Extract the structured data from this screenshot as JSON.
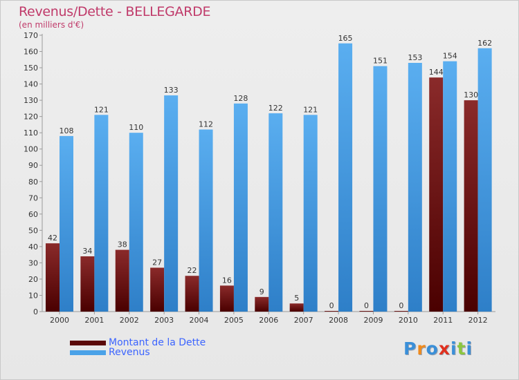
{
  "title": "Revenus/Dette - BELLEGARDE",
  "subtitle": "(en milliers d'€)",
  "legend": {
    "debt_label": "Montant de la Dette",
    "revenue_label": "Revenus"
  },
  "logo": {
    "letters": [
      "P",
      "r",
      "o",
      "x",
      "i",
      "t",
      "i"
    ],
    "colors": [
      "#3a8fd8",
      "#f08a1c",
      "#3a8fd8",
      "#e0301e",
      "#3a8fd8",
      "#8cc63f",
      "#3a8fd8"
    ]
  },
  "colors": {
    "debt_top": "#8a2a2a",
    "debt_bottom": "#4a0000",
    "revenue_top": "#5aaef0",
    "revenue_bottom": "#2e7fc8",
    "title": "#c03a6a"
  },
  "chart_data": {
    "type": "bar",
    "categories": [
      "2000",
      "2001",
      "2002",
      "2003",
      "2004",
      "2005",
      "2006",
      "2007",
      "2008",
      "2009",
      "2010",
      "2011",
      "2012"
    ],
    "series": [
      {
        "name": "Montant de la Dette",
        "values": [
          42,
          34,
          38,
          27,
          22,
          16,
          9,
          5,
          0,
          0,
          0,
          144,
          130
        ]
      },
      {
        "name": "Revenus",
        "values": [
          108,
          121,
          110,
          133,
          112,
          128,
          122,
          121,
          165,
          151,
          153,
          154,
          162
        ]
      }
    ],
    "title": "Revenus/Dette - BELLEGARDE",
    "subtitle": "(en milliers d'€)",
    "ylim": [
      0,
      170
    ],
    "yticks": [
      0,
      10,
      20,
      30,
      40,
      50,
      60,
      70,
      80,
      90,
      100,
      110,
      120,
      130,
      140,
      150,
      160,
      170
    ],
    "grid": false,
    "legend": "bottom-left"
  }
}
